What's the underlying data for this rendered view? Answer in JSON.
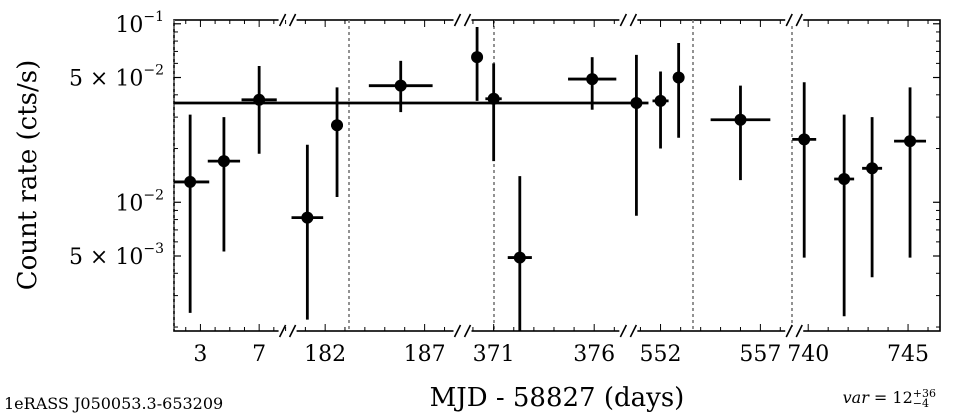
{
  "chart_data": {
    "type": "scatter",
    "title": "",
    "xlabel": "MJD - 58827 (days)",
    "ylabel": "Count rate (cts/s)",
    "yscale": "log",
    "ylim": [
      0.0019,
      0.105
    ],
    "yticks": [
      {
        "value": 0.1,
        "mant": "10",
        "exp": "−1"
      },
      {
        "value": 0.05,
        "mant": "5 × 10",
        "exp": "−2"
      },
      {
        "value": 0.01,
        "mant": "10",
        "exp": "−2"
      },
      {
        "value": 0.005,
        "mant": "5 × 10",
        "exp": "−3"
      }
    ],
    "segments": [
      {
        "xlim": [
          1.2,
          8.8
        ],
        "ticks": [
          "3",
          "7"
        ]
      },
      {
        "xlim": [
          180.0,
          183.2
        ],
        "ticks": [
          "182"
        ]
      },
      {
        "xlim": [
          183.2,
          188.8
        ],
        "ticks": [
          "187"
        ]
      },
      {
        "xlim": [
          369.4,
          371.0
        ],
        "ticks": []
      },
      {
        "xlim": [
          371.0,
          377.6
        ],
        "ticks": [
          "371",
          "376"
        ]
      },
      {
        "xlim": [
          550.3,
          553.6
        ],
        "ticks": [
          "552"
        ]
      },
      {
        "xlim": [
          553.6,
          558.6
        ],
        "ticks": [
          "557"
        ]
      },
      {
        "xlim": [
          739.2,
          746.6
        ],
        "ticks": [
          "740",
          "745"
        ]
      }
    ],
    "points": [
      {
        "x": 2.3,
        "xerr": 1.3,
        "y": 0.013,
        "ylo": 0.0024,
        "yhi": 0.031
      },
      {
        "x": 4.6,
        "xerr": 1.1,
        "y": 0.017,
        "ylo": 0.0053,
        "yhi": 0.03
      },
      {
        "x": 7.0,
        "xerr": 1.2,
        "y": 0.0375,
        "ylo": 0.0187,
        "yhi": 0.058
      },
      {
        "x": 181.1,
        "xerr": 0.8,
        "y": 0.0082,
        "ylo": 0.0022,
        "yhi": 0.021
      },
      {
        "x": 182.6,
        "xerr": 0.3,
        "y": 0.027,
        "ylo": 0.0107,
        "yhi": 0.044
      },
      {
        "x": 185.8,
        "xerr": 1.6,
        "y": 0.045,
        "ylo": 0.032,
        "yhi": 0.062
      },
      {
        "x": 370.2,
        "xerr": 0.0,
        "y": 0.065,
        "ylo": 0.037,
        "yhi": 0.096
      },
      {
        "x": 371.0,
        "xerr": 0.4,
        "y": 0.038,
        "ylo": 0.017,
        "yhi": 0.06
      },
      {
        "x": 372.3,
        "xerr": 0.6,
        "y": 0.0049,
        "ylo": 0.0019,
        "yhi": 0.014
      },
      {
        "x": 375.9,
        "xerr": 1.2,
        "y": 0.049,
        "ylo": 0.033,
        "yhi": 0.065
      },
      {
        "x": 550.8,
        "xerr": 0.6,
        "y": 0.036,
        "ylo": 0.0084,
        "yhi": 0.067
      },
      {
        "x": 552.0,
        "xerr": 0.4,
        "y": 0.037,
        "ylo": 0.02,
        "yhi": 0.054
      },
      {
        "x": 552.9,
        "xerr": 0.2,
        "y": 0.05,
        "ylo": 0.023,
        "yhi": 0.078
      },
      {
        "x": 556.0,
        "xerr": 1.5,
        "y": 0.029,
        "ylo": 0.0133,
        "yhi": 0.045
      },
      {
        "x": 739.8,
        "xerr": 0.6,
        "y": 0.0225,
        "ylo": 0.0049,
        "yhi": 0.047
      },
      {
        "x": 741.8,
        "xerr": 0.5,
        "y": 0.0135,
        "ylo": 0.0023,
        "yhi": 0.031
      },
      {
        "x": 743.2,
        "xerr": 0.5,
        "y": 0.0155,
        "ylo": 0.0038,
        "yhi": 0.03
      },
      {
        "x": 745.1,
        "xerr": 0.8,
        "y": 0.022,
        "ylo": 0.0049,
        "yhi": 0.044
      }
    ],
    "source_label": "1eRASS J050053.3-653209",
    "variability": {
      "prefix": "var",
      "value": "12",
      "upper": "+36",
      "lower": "−4"
    }
  }
}
